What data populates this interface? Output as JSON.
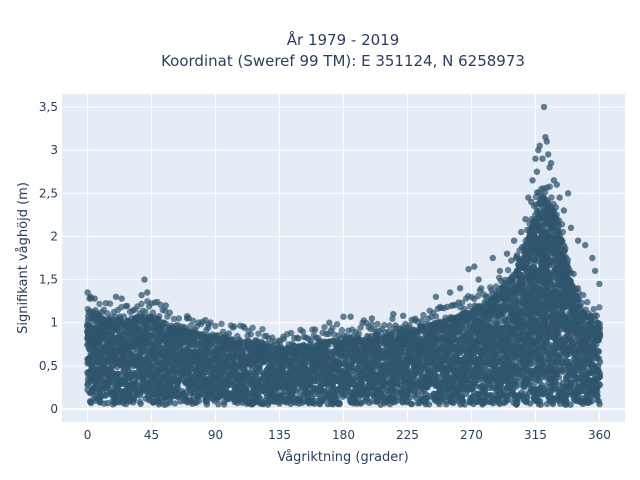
{
  "chart_data": {
    "type": "scatter",
    "title": [
      "År 1979 - 2019",
      "Koordinat (Sweref 99 TM): E 351124, N 6258973"
    ],
    "xlabel": "Vågriktning (grader)",
    "ylabel": "Signifikant våghöjd (m)",
    "xlim": [
      -18,
      378
    ],
    "ylim": [
      -0.15,
      3.65
    ],
    "xticks": [
      0,
      45,
      90,
      135,
      180,
      225,
      270,
      315,
      360
    ],
    "xtick_labels": [
      "0",
      "45",
      "90",
      "135",
      "180",
      "225",
      "270",
      "315",
      "360"
    ],
    "yticks": [
      0,
      0.5,
      1,
      1.5,
      2,
      2.5,
      3,
      3.5
    ],
    "ytick_labels": [
      "0",
      "0,5",
      "1",
      "1,5",
      "2",
      "2,5",
      "3",
      "3,5"
    ],
    "grid": true,
    "marker_color": "#2f566e",
    "plot_bg": "#e5ecf6",
    "envelope": {
      "direction": [
        0,
        15,
        30,
        45,
        60,
        75,
        90,
        105,
        120,
        135,
        150,
        165,
        180,
        195,
        210,
        225,
        240,
        255,
        270,
        285,
        300,
        305,
        310,
        315,
        320,
        325,
        330,
        335,
        340,
        345,
        350,
        360
      ],
      "max_height": [
        1.15,
        1.05,
        1.05,
        1.1,
        0.95,
        0.9,
        0.85,
        0.8,
        0.78,
        0.72,
        0.75,
        0.78,
        0.82,
        0.85,
        0.88,
        0.92,
        0.98,
        1.05,
        1.15,
        1.3,
        1.55,
        1.75,
        2.0,
        2.35,
        2.5,
        2.4,
        2.2,
        1.9,
        1.5,
        1.3,
        1.1,
        1.0
      ]
    },
    "min_height": 0.05,
    "outliers": [
      {
        "x": 0,
        "y": 1.35
      },
      {
        "x": 2,
        "y": 1.3
      },
      {
        "x": 5,
        "y": 1.28
      },
      {
        "x": 20,
        "y": 1.3
      },
      {
        "x": 24,
        "y": 1.28
      },
      {
        "x": 38,
        "y": 1.32
      },
      {
        "x": 40,
        "y": 1.5
      },
      {
        "x": 42,
        "y": 1.35
      },
      {
        "x": 55,
        "y": 1.2
      },
      {
        "x": 70,
        "y": 1.05
      },
      {
        "x": 85,
        "y": 0.98
      },
      {
        "x": 160,
        "y": 0.92
      },
      {
        "x": 170,
        "y": 1.0
      },
      {
        "x": 180,
        "y": 1.07
      },
      {
        "x": 185,
        "y": 1.07
      },
      {
        "x": 200,
        "y": 1.05
      },
      {
        "x": 215,
        "y": 1.1
      },
      {
        "x": 222,
        "y": 1.08
      },
      {
        "x": 245,
        "y": 1.3
      },
      {
        "x": 255,
        "y": 1.35
      },
      {
        "x": 262,
        "y": 1.4
      },
      {
        "x": 268,
        "y": 1.62
      },
      {
        "x": 272,
        "y": 1.65
      },
      {
        "x": 275,
        "y": 1.5
      },
      {
        "x": 285,
        "y": 1.75
      },
      {
        "x": 290,
        "y": 1.6
      },
      {
        "x": 295,
        "y": 1.8
      },
      {
        "x": 298,
        "y": 1.72
      },
      {
        "x": 300,
        "y": 1.95
      },
      {
        "x": 302,
        "y": 1.78
      },
      {
        "x": 305,
        "y": 2.05
      },
      {
        "x": 308,
        "y": 2.2
      },
      {
        "x": 310,
        "y": 2.45
      },
      {
        "x": 312,
        "y": 2.4
      },
      {
        "x": 313,
        "y": 2.65
      },
      {
        "x": 315,
        "y": 2.9
      },
      {
        "x": 316,
        "y": 2.75
      },
      {
        "x": 317,
        "y": 3.0
      },
      {
        "x": 318,
        "y": 3.05
      },
      {
        "x": 320,
        "y": 2.9
      },
      {
        "x": 321,
        "y": 3.5
      },
      {
        "x": 322,
        "y": 3.15
      },
      {
        "x": 323,
        "y": 3.1
      },
      {
        "x": 324,
        "y": 2.95
      },
      {
        "x": 325,
        "y": 2.8
      },
      {
        "x": 326,
        "y": 2.85
      },
      {
        "x": 328,
        "y": 2.65
      },
      {
        "x": 330,
        "y": 2.6
      },
      {
        "x": 332,
        "y": 2.45
      },
      {
        "x": 335,
        "y": 2.3
      },
      {
        "x": 338,
        "y": 2.5
      },
      {
        "x": 340,
        "y": 2.1
      },
      {
        "x": 345,
        "y": 1.95
      },
      {
        "x": 350,
        "y": 1.9
      },
      {
        "x": 355,
        "y": 1.75
      },
      {
        "x": 357,
        "y": 1.6
      },
      {
        "x": 360,
        "y": 1.45
      }
    ]
  }
}
